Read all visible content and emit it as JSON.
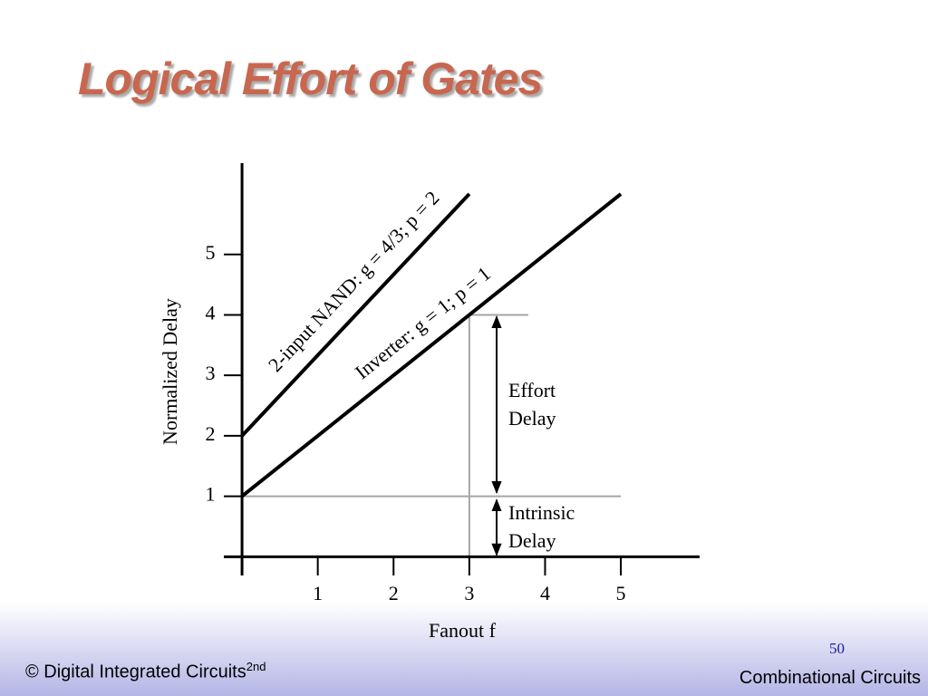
{
  "slide": {
    "title": "Logical Effort of Gates",
    "footer_left": "© Digital Integrated Circuits",
    "footer_left_sup": "2nd",
    "page_number": "50",
    "footer_right": "Combinational Circuits"
  },
  "chart_data": {
    "type": "line",
    "xlabel": "Fanout f",
    "ylabel": "Normalized Delay",
    "series": [
      {
        "name": "2-input NAND: g = 4/3; p = 2",
        "color": "#000000",
        "x": [
          0,
          3
        ],
        "values": [
          2,
          6
        ]
      },
      {
        "name": "Inverter: g = 1; p = 1",
        "color": "#000000",
        "x": [
          0,
          1,
          2,
          3,
          4,
          5
        ],
        "values": [
          1,
          2,
          3,
          4,
          5,
          6
        ]
      }
    ],
    "annotations": [
      [
        "Effort",
        "Delay"
      ],
      [
        "Intrinsic",
        "Delay"
      ]
    ],
    "xlim": [
      -0.24,
      6.04
    ],
    "xticks": [
      1,
      2,
      3,
      4,
      5
    ],
    "ylim": [
      -0.31,
      6.51
    ],
    "yticks": [
      1,
      2,
      3,
      4,
      5
    ]
  }
}
